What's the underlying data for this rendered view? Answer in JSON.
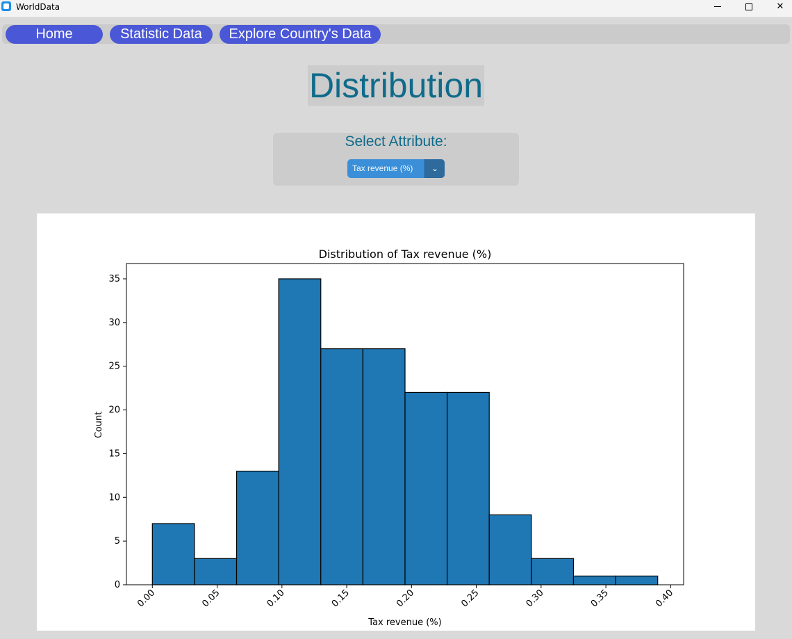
{
  "window": {
    "title": "WorldData",
    "controls": {
      "minimize": "minimize",
      "maximize": "maximize",
      "close": "✕"
    }
  },
  "nav": {
    "items": [
      {
        "label": "Home"
      },
      {
        "label": "Statistic Data"
      },
      {
        "label": "Explore Country's Data"
      }
    ]
  },
  "page": {
    "heading": "Distribution",
    "select_label": "Select Attribute:",
    "attribute_value": "Tax revenue (%)",
    "dropdown_icon": "chevron-down-icon"
  },
  "chart_data": {
    "type": "bar",
    "title": "Distribution of Tax revenue (%)",
    "xlabel": "Tax revenue (%)",
    "ylabel": "Count",
    "bin_edges": [
      0.0,
      0.0325,
      0.065,
      0.0975,
      0.13,
      0.1625,
      0.195,
      0.2275,
      0.26,
      0.2925,
      0.325,
      0.3575,
      0.39
    ],
    "values": [
      7,
      3,
      13,
      35,
      27,
      27,
      22,
      22,
      8,
      3,
      1,
      1
    ],
    "xlim": [
      -0.02,
      0.41
    ],
    "ylim": [
      0,
      36.75
    ],
    "xticks": [
      "0.00",
      "0.05",
      "0.10",
      "0.15",
      "0.20",
      "0.25",
      "0.30",
      "0.35",
      "0.40"
    ],
    "yticks": [
      "0",
      "5",
      "10",
      "15",
      "20",
      "25",
      "30",
      "35"
    ],
    "bar_color": "#1f77b4",
    "edge_color": "#000000",
    "grid": false
  }
}
